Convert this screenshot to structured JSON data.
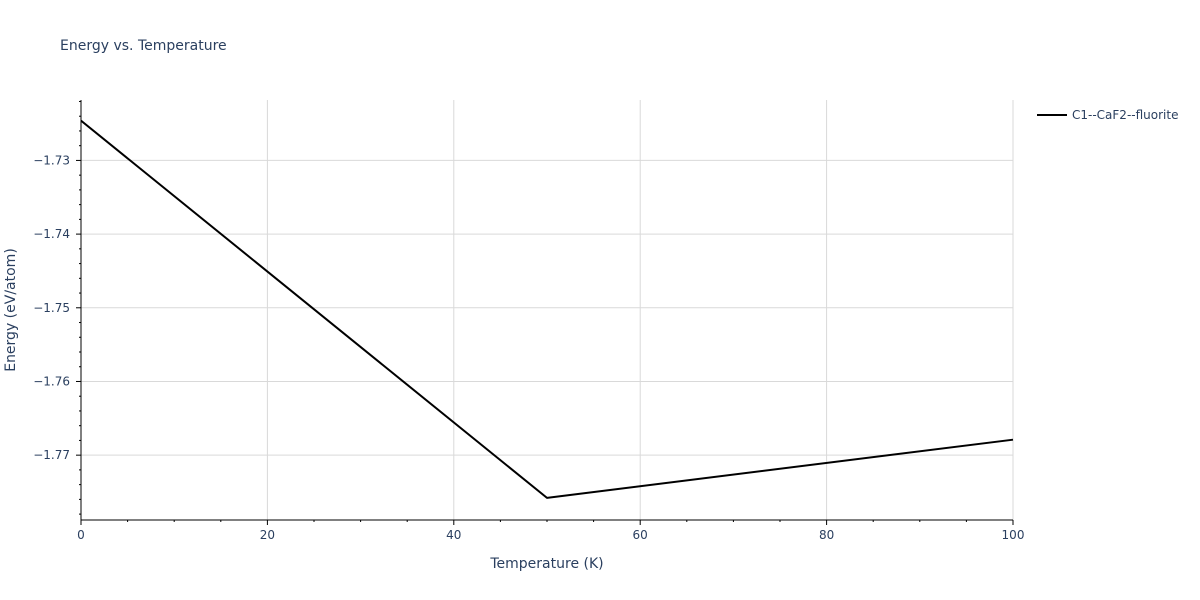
{
  "chart_data": {
    "type": "line",
    "title": "Energy vs. Temperature",
    "xlabel": "Temperature (K)",
    "ylabel": "Energy (eV/atom)",
    "xlim": [
      0,
      100
    ],
    "ylim": [
      -1.7788,
      -1.7218
    ],
    "xticks": [
      0,
      20,
      40,
      60,
      80,
      100
    ],
    "xtick_labels": [
      "0",
      "20",
      "40",
      "60",
      "80",
      "100"
    ],
    "yticks": [
      -1.73,
      -1.74,
      -1.75,
      -1.76,
      -1.77
    ],
    "ytick_labels": [
      "−1.73",
      "−1.74",
      "−1.75",
      "−1.76",
      "−1.77"
    ],
    "grid": true,
    "legend_position": "top-right, outside plot",
    "series": [
      {
        "name": "C1--CaF2--fluorite",
        "color": "#000000",
        "x": [
          0,
          50,
          100
        ],
        "y": [
          -1.7246,
          -1.7758,
          -1.7679
        ]
      }
    ]
  }
}
